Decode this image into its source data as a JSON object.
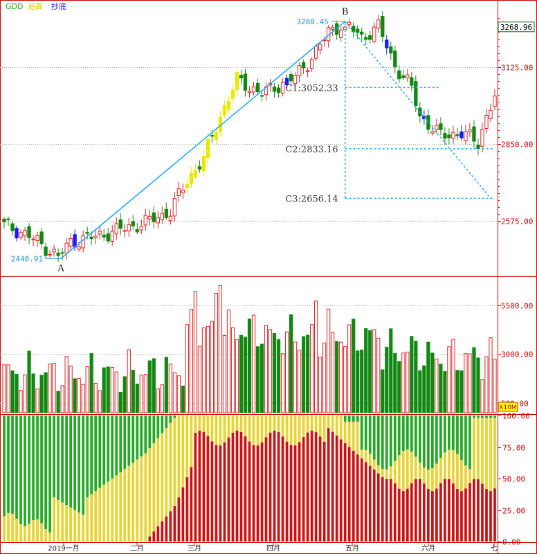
{
  "legend": [
    {
      "label": "GDD",
      "color": "#22aa22"
    },
    {
      "label": "追高",
      "color": "#e0c800"
    },
    {
      "label": "抄底",
      "color": "#1a1aff"
    }
  ],
  "price_panel": {
    "current_price_label": "3268.96",
    "y_ticks": [
      "3125.00",
      "2850.00",
      "2575.00"
    ],
    "points": {
      "A": {
        "label": "A",
        "value_label": "2440.91"
      },
      "B": {
        "label": "B",
        "value_label": "3288.45"
      }
    },
    "levels": [
      {
        "label": "C1:3052.33"
      },
      {
        "label": "C2:2833.16"
      },
      {
        "label": "C3:2656.14"
      }
    ]
  },
  "volume_panel": {
    "y_ticks": [
      "5500.00",
      "3000.00",
      "500.00"
    ],
    "unit": "X10M"
  },
  "ratio_panel": {
    "y_ticks": [
      "100.00",
      "75.00",
      "50.00",
      "25.00",
      "0.00"
    ]
  },
  "x_axis": {
    "ticks": [
      "2019一月",
      "二月",
      "三月",
      "四月",
      "五月",
      "六月",
      "七"
    ]
  },
  "colors": {
    "up": "#dd2222",
    "down": "#118811",
    "yellow": "#e8e800",
    "blue": "#1a1aff",
    "frame": "#cc0000",
    "fib": "#22aaee",
    "ratio_green": "#22aa22",
    "ratio_yellow": "#e8d430",
    "ratio_red": "#cc1111"
  },
  "chart_data": {
    "type": "candlestick+bar+stacked-area",
    "price": {
      "ylim": [
        2380,
        3360
      ],
      "start_low": 2440.91,
      "peak_high": 3288.45,
      "fib_levels": [
        3052.33,
        2833.16,
        2656.14
      ],
      "last_close": 3268.96
    },
    "volume": {
      "ylim": [
        0,
        6900
      ],
      "ticks": [
        5500,
        3000,
        500
      ]
    },
    "ratio": {
      "ylim": [
        0,
        100
      ],
      "ticks": [
        100,
        75,
        50,
        25,
        0
      ]
    }
  }
}
